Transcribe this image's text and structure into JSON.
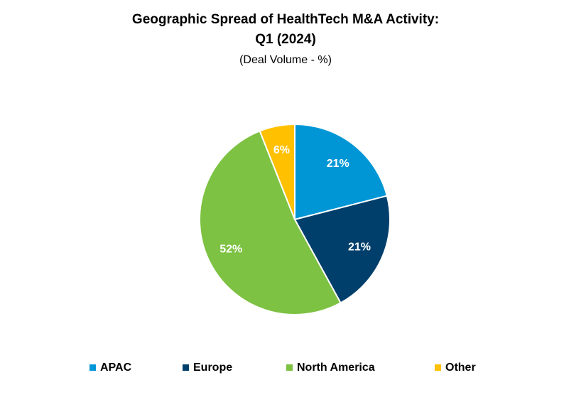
{
  "chart_data": {
    "type": "pie",
    "title": [
      "Geographic Spread of HealthTech M&A Activity:",
      "Q1 (2024)"
    ],
    "subtitle": "(Deal Volume - %)",
    "categories": [
      "APAC",
      "Europe",
      "North America",
      "Other"
    ],
    "values": [
      21,
      21,
      52,
      6
    ],
    "value_labels": [
      "21%",
      "21%",
      "52%",
      "6%"
    ],
    "colors": [
      "#0096d6",
      "#003f6b",
      "#7dc242",
      "#ffc000"
    ],
    "legend": "bottom"
  }
}
